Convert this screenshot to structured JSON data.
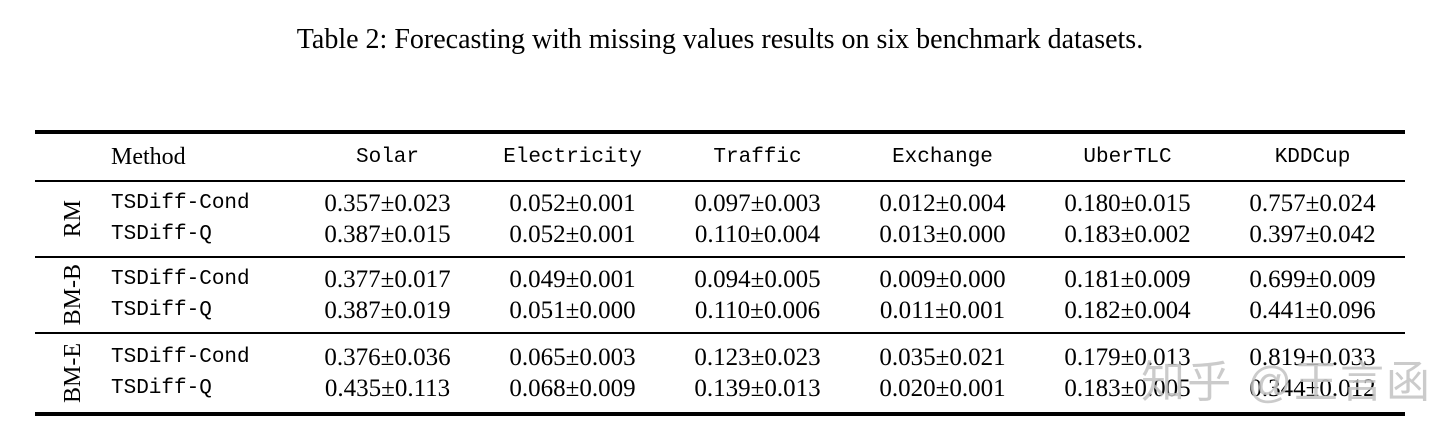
{
  "page": {
    "background": "#ffffff",
    "text_color": "#000000",
    "watermark_color": "#c3c3c3"
  },
  "caption": "Table 2: Forecasting with missing values results on six benchmark datasets.",
  "watermark": "知乎 @王言函",
  "table": {
    "headers": [
      "Method",
      "Solar",
      "Electricity",
      "Traffic",
      "Exchange",
      "UberTLC",
      "KDDCup"
    ],
    "groups": [
      {
        "label": "RM",
        "rows": [
          {
            "method": "TSDiff-Cond",
            "values": [
              "0.357±0.023",
              "0.052±0.001",
              "0.097±0.003",
              "0.012±0.004",
              "0.180±0.015",
              "0.757±0.024"
            ]
          },
          {
            "method": "TSDiff-Q",
            "values": [
              "0.387±0.015",
              "0.052±0.001",
              "0.110±0.004",
              "0.013±0.000",
              "0.183±0.002",
              "0.397±0.042"
            ]
          }
        ]
      },
      {
        "label": "BM-B",
        "rows": [
          {
            "method": "TSDiff-Cond",
            "values": [
              "0.377±0.017",
              "0.049±0.001",
              "0.094±0.005",
              "0.009±0.000",
              "0.181±0.009",
              "0.699±0.009"
            ]
          },
          {
            "method": "TSDiff-Q",
            "values": [
              "0.387±0.019",
              "0.051±0.000",
              "0.110±0.006",
              "0.011±0.001",
              "0.182±0.004",
              "0.441±0.096"
            ]
          }
        ]
      },
      {
        "label": "BM-E",
        "rows": [
          {
            "method": "TSDiff-Cond",
            "values": [
              "0.376±0.036",
              "0.065±0.003",
              "0.123±0.023",
              "0.035±0.021",
              "0.179±0.013",
              "0.819±0.033"
            ]
          },
          {
            "method": "TSDiff-Q",
            "values": [
              "0.435±0.113",
              "0.068±0.009",
              "0.139±0.013",
              "0.020±0.001",
              "0.183±0.005",
              "0.344±0.012"
            ]
          }
        ]
      }
    ]
  }
}
